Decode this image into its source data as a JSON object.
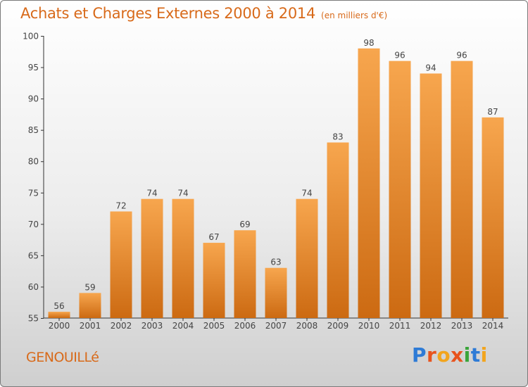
{
  "header": {
    "title": "Achats et Charges Externes 2000 à 2014",
    "subtitle": "(en milliers d'€)"
  },
  "footer": {
    "commune": "GENOUILLé",
    "brand_letters": [
      "P",
      "r",
      "o",
      "x",
      "i",
      "t",
      "i"
    ],
    "brand_colors": [
      "#2e7bd6",
      "#e8541e",
      "#f2a51e",
      "#e8541e",
      "#3aa53a",
      "#2e7bd6",
      "#f2a51e"
    ]
  },
  "colors": {
    "bar_top": "#f7a64e",
    "bar_bottom": "#cc6a12",
    "title": "#d86a1a"
  },
  "chart_data": {
    "type": "bar",
    "categories": [
      "2000",
      "2001",
      "2002",
      "2003",
      "2004",
      "2005",
      "2006",
      "2007",
      "2008",
      "2009",
      "2010",
      "2011",
      "2012",
      "2013",
      "2014"
    ],
    "values": [
      56,
      59,
      72,
      74,
      74,
      67,
      69,
      63,
      74,
      83,
      98,
      96,
      94,
      96,
      87
    ],
    "ylim": [
      55,
      100
    ],
    "yticks": [
      55,
      60,
      65,
      70,
      75,
      80,
      85,
      90,
      95,
      100
    ],
    "grid": false,
    "legend": "none"
  }
}
